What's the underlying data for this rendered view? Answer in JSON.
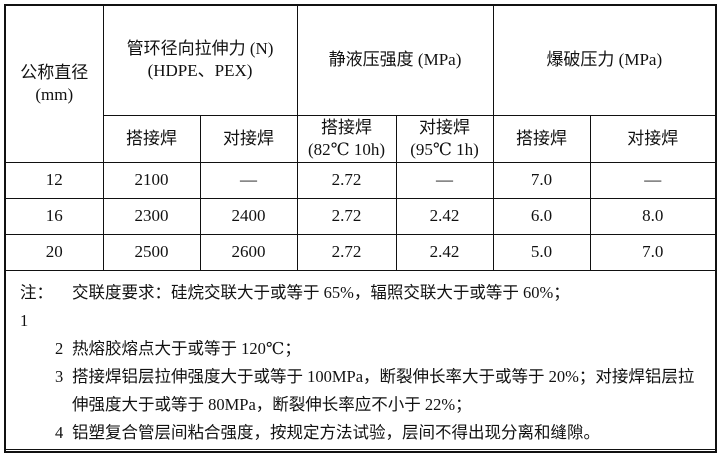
{
  "table": {
    "header": {
      "diameter": "公称直径",
      "diameter_unit": "(mm)",
      "ring_tension_line1": "管环径向拉伸力 (N)",
      "ring_tension_line2": "(HDPE、PEX)",
      "hydrostatic": "静液压强度 (MPa)",
      "burst": "爆破压力 (MPa)",
      "lap_weld": "搭接焊",
      "butt_weld": "对接焊",
      "hydro_lap_line1": "搭接焊",
      "hydro_lap_line2": "(82℃ 10h)",
      "hydro_butt_line1": "对接焊",
      "hydro_butt_line2": "(95℃ 1h)"
    },
    "rows": [
      [
        "12",
        "2100",
        "—",
        "2.72",
        "—",
        "7.0",
        "—"
      ],
      [
        "16",
        "2300",
        "2400",
        "2.72",
        "2.42",
        "6.0",
        "8.0"
      ],
      [
        "20",
        "2500",
        "2600",
        "2.72",
        "2.42",
        "5.0",
        "7.0"
      ]
    ]
  },
  "notes": {
    "prefix": "注：",
    "items": [
      {
        "num": "1",
        "text": "交联度要求：硅烷交联大于或等于 65%，辐照交联大于或等于 60%；"
      },
      {
        "num": "2",
        "text": "热熔胶熔点大于或等于 120℃；"
      },
      {
        "num": "3",
        "text": "搭接焊铝层拉伸强度大于或等于 100MPa，断裂伸长率大于或等于 20%；对接焊铝层拉伸强度大于或等于 80MPa，断裂伸长率应不小于 22%；"
      },
      {
        "num": "4",
        "text": "铝塑复合管层间粘合强度，按规定方法试验，层间不得出现分离和缝隙。"
      }
    ]
  }
}
